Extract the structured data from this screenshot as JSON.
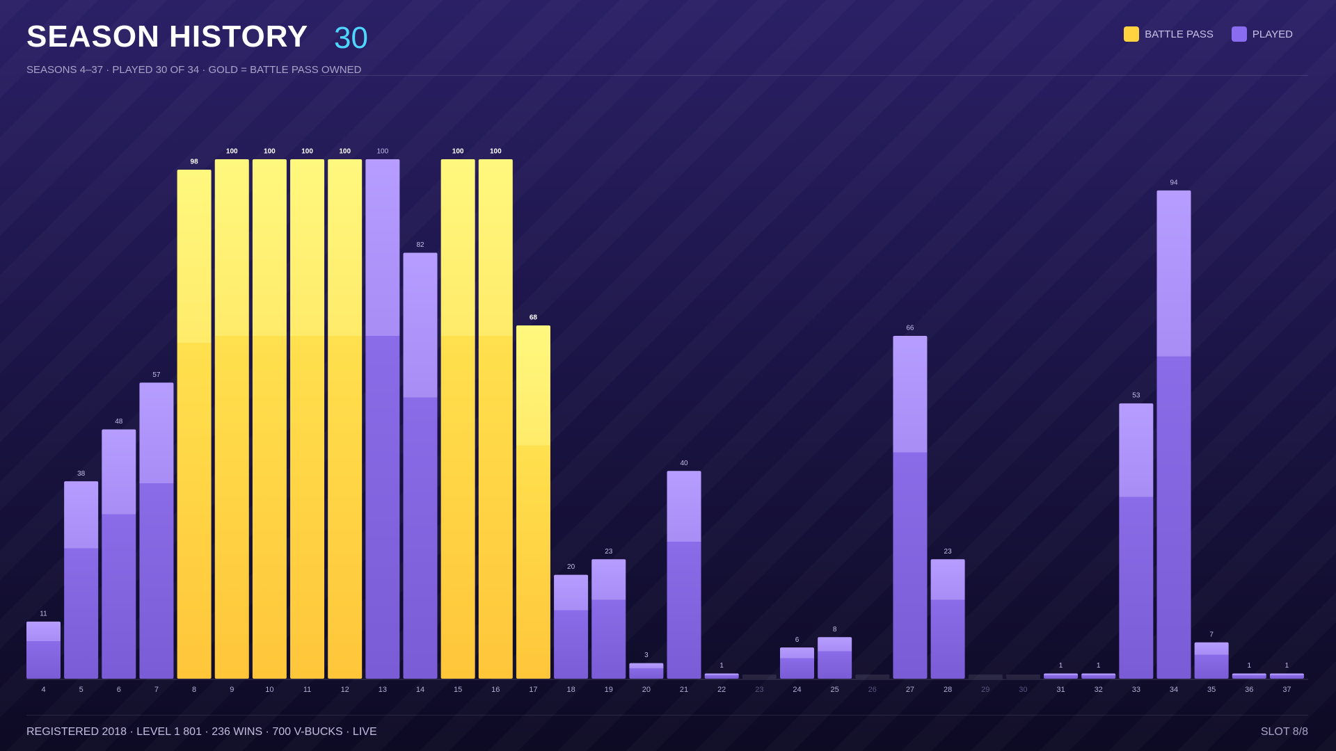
{
  "header": {
    "title": "SEASON HISTORY",
    "count": "30",
    "subtitle": "SEASONS 4–37 · PLAYED 30 OF 34 · GOLD = BATTLE PASS OWNED"
  },
  "chart_data": {
    "type": "bar",
    "categories": [
      "4",
      "5",
      "6",
      "7",
      "8",
      "9",
      "10",
      "11",
      "12",
      "13",
      "14",
      "15",
      "16",
      "17",
      "18",
      "19",
      "20",
      "21",
      "22",
      "23",
      "24",
      "25",
      "26",
      "27",
      "28",
      "29",
      "30",
      "31",
      "32",
      "33",
      "34",
      "35",
      "36",
      "37"
    ],
    "series": [
      {
        "name": "BATTLE PASS",
        "color": "#ffd23f",
        "values": [
          null,
          null,
          null,
          null,
          98,
          100,
          100,
          100,
          100,
          null,
          null,
          100,
          100,
          68,
          null,
          null,
          null,
          null,
          null,
          null,
          null,
          null,
          null,
          null,
          null,
          null,
          null,
          null,
          null,
          null,
          null,
          null,
          null,
          null
        ]
      },
      {
        "name": "PLAYED",
        "color": "#8a6cf0",
        "values": [
          11,
          38,
          48,
          57,
          null,
          null,
          null,
          null,
          null,
          100,
          82,
          null,
          null,
          null,
          20,
          23,
          3,
          40,
          1,
          null,
          6,
          8,
          null,
          66,
          23,
          null,
          null,
          1,
          1,
          53,
          94,
          7,
          1,
          1
        ]
      }
    ],
    "legend": "top-right"
  },
  "footer": {
    "info": "REGISTERED 2018 · LEVEL 1 801 · 236 WINS · 700 V-BUCKS · LIVE",
    "slot": "SLOT 8/8"
  }
}
